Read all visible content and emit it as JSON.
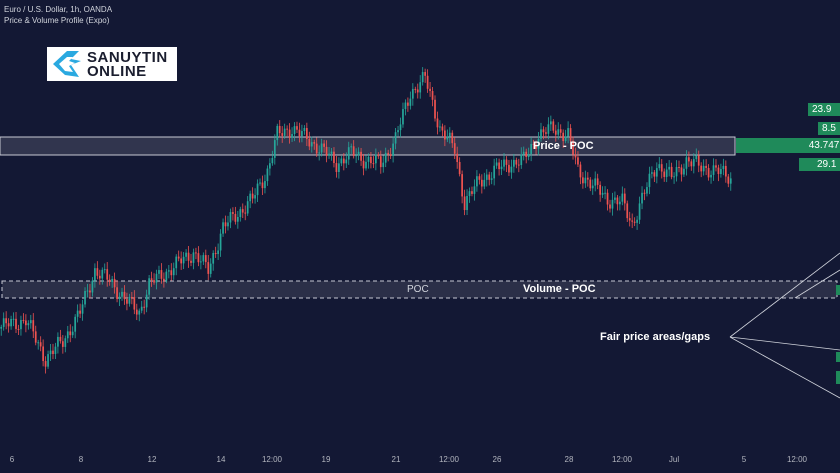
{
  "header": {
    "symbol_line": "Euro / U.S. Dollar, 1h, OANDA",
    "indicator_line": "Price & Volume Profile (Expo)"
  },
  "logo": {
    "line1": "SANUYTIN",
    "line2": "ONLINE"
  },
  "annotations": {
    "price_poc": "Price - POC",
    "poc_small": "POC",
    "volume_poc": "Volume - POC",
    "fair_price": "Fair price areas/gaps"
  },
  "badges": {
    "b1": "23.9",
    "b2": "8.5",
    "b3": "43.747K",
    "b4": "29.1"
  },
  "colors": {
    "background": "#131834",
    "up": "#26a69a",
    "down": "#ef5350",
    "badge_green": "#1f8a5a",
    "band": "#ffffff"
  },
  "chart_data": {
    "type": "candlestick",
    "x_tick_labels": [
      "6",
      "8",
      "12",
      "14",
      "12:00",
      "19",
      "21",
      "12:00",
      "26",
      "28",
      "12:00",
      "Jul",
      "5",
      "12:00"
    ],
    "ylim": [
      0,
      100
    ],
    "price_poc_band": [
      65,
      70
    ],
    "volume_poc_band": [
      32,
      37
    ],
    "close_path": [
      {
        "i": 0,
        "y": 22
      },
      {
        "i": 10,
        "y": 24
      },
      {
        "i": 18,
        "y": 13
      },
      {
        "i": 25,
        "y": 18
      },
      {
        "i": 32,
        "y": 26
      },
      {
        "i": 38,
        "y": 38
      },
      {
        "i": 44,
        "y": 35
      },
      {
        "i": 50,
        "y": 30
      },
      {
        "i": 56,
        "y": 26
      },
      {
        "i": 60,
        "y": 34
      },
      {
        "i": 66,
        "y": 37
      },
      {
        "i": 72,
        "y": 40
      },
      {
        "i": 78,
        "y": 43
      },
      {
        "i": 84,
        "y": 38
      },
      {
        "i": 90,
        "y": 50
      },
      {
        "i": 96,
        "y": 54
      },
      {
        "i": 102,
        "y": 58
      },
      {
        "i": 108,
        "y": 66
      },
      {
        "i": 112,
        "y": 76
      },
      {
        "i": 118,
        "y": 78
      },
      {
        "i": 124,
        "y": 75
      },
      {
        "i": 130,
        "y": 72
      },
      {
        "i": 136,
        "y": 68
      },
      {
        "i": 142,
        "y": 71
      },
      {
        "i": 148,
        "y": 69
      },
      {
        "i": 154,
        "y": 68
      },
      {
        "i": 160,
        "y": 75
      },
      {
        "i": 166,
        "y": 88
      },
      {
        "i": 172,
        "y": 92
      },
      {
        "i": 178,
        "y": 78
      },
      {
        "i": 184,
        "y": 72
      },
      {
        "i": 188,
        "y": 57
      },
      {
        "i": 194,
        "y": 63
      },
      {
        "i": 200,
        "y": 66
      },
      {
        "i": 206,
        "y": 68
      },
      {
        "i": 212,
        "y": 69
      },
      {
        "i": 218,
        "y": 76
      },
      {
        "i": 224,
        "y": 78
      },
      {
        "i": 230,
        "y": 76
      },
      {
        "i": 234,
        "y": 66
      },
      {
        "i": 240,
        "y": 62
      },
      {
        "i": 246,
        "y": 58
      },
      {
        "i": 252,
        "y": 57
      },
      {
        "i": 256,
        "y": 51
      },
      {
        "i": 260,
        "y": 58
      },
      {
        "i": 266,
        "y": 68
      },
      {
        "i": 272,
        "y": 64
      },
      {
        "i": 278,
        "y": 69
      },
      {
        "i": 284,
        "y": 67
      },
      {
        "i": 290,
        "y": 66
      },
      {
        "i": 296,
        "y": 64
      }
    ]
  }
}
